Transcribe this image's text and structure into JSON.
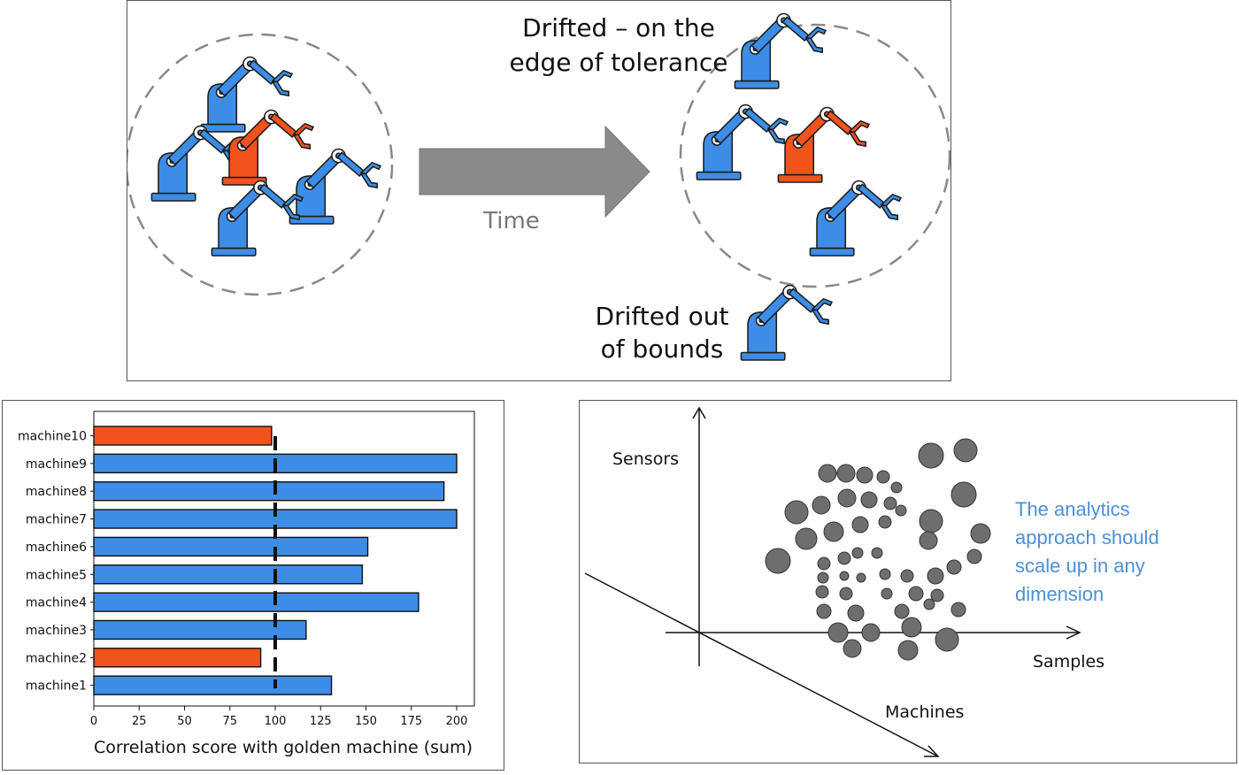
{
  "colors": {
    "robot_blue": "#3d8de6",
    "robot_orange": "#f2531c",
    "outline": "#1a1a1a",
    "arrow_gray": "#8a8a8a",
    "bar_blue": "#3d8de6",
    "bar_orange": "#f2531c",
    "bubble_gray": "#6e6e6e",
    "callout_blue": "#4a90d9"
  },
  "drift_panel": {
    "label_tolerance_line1": "Drifted – on the",
    "label_tolerance_line2": "edge of tolerance",
    "label_time": "Time",
    "label_out_line1": "Drifted out",
    "label_out_line2": "of bounds"
  },
  "chart_data": {
    "type": "bar",
    "orientation": "horizontal",
    "categories": [
      "machine1",
      "machine2",
      "machine3",
      "machine4",
      "machine5",
      "machine6",
      "machine7",
      "machine8",
      "machine9",
      "machine10"
    ],
    "values": [
      131,
      92,
      117,
      179,
      148,
      151,
      200,
      193,
      200,
      98
    ],
    "highlighted": [
      "machine2",
      "machine10"
    ],
    "threshold": 100,
    "xlabel": "Correlation score with golden machine (sum)",
    "xlim": [
      0,
      210
    ],
    "xticks": [
      0,
      25,
      50,
      75,
      100,
      125,
      150,
      175,
      200
    ],
    "grid": false
  },
  "dims_panel": {
    "axis_sensors": "Sensors",
    "axis_samples": "Samples",
    "axis_machines": "Machines",
    "callout_line1": "The analytics",
    "callout_line2": "approach should",
    "callout_line3": "scale up in any",
    "callout_line4": "dimension"
  }
}
